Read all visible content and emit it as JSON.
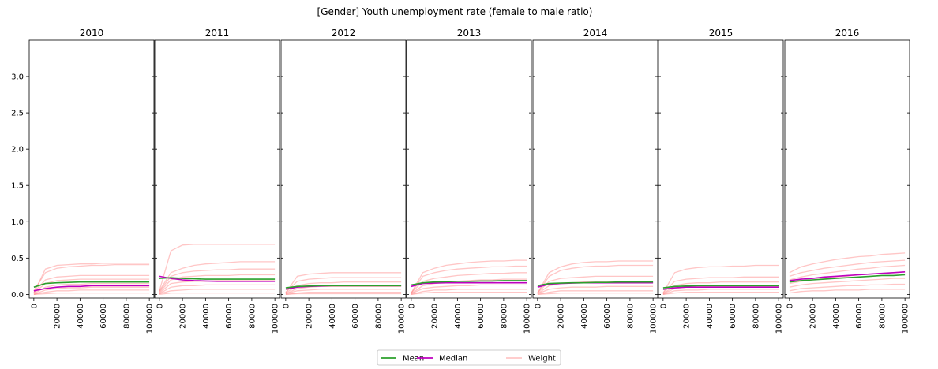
{
  "chart_data": {
    "type": "line",
    "title": "[Gender] Youth unemployment rate (female to male ratio)",
    "panels": [
      "2010",
      "2011",
      "2012",
      "2013",
      "2014",
      "2015",
      "2016"
    ],
    "x_ticks": [
      "0",
      "20000",
      "40000",
      "60000",
      "80000",
      "100000"
    ],
    "xlim": [
      -4000,
      104000
    ],
    "y_ticks": [
      "0.0",
      "0.5",
      "1.0",
      "1.5",
      "2.0",
      "2.5",
      "3.0"
    ],
    "ylim": [
      -0.05,
      3.5
    ],
    "x": [
      0,
      10000,
      20000,
      30000,
      40000,
      50000,
      60000,
      70000,
      80000,
      90000,
      100000
    ],
    "legend": {
      "entries": [
        "Mean",
        "Median",
        "Weight"
      ],
      "placement": "bottom-center"
    },
    "series": [
      {
        "name": "Mean",
        "color": "#2ca02c",
        "values": [
          [
            0.1,
            0.15,
            0.16,
            0.165,
            0.17,
            0.17,
            0.17,
            0.17,
            0.17,
            0.17,
            0.17
          ],
          [
            0.22,
            0.23,
            0.22,
            0.215,
            0.21,
            0.21,
            0.21,
            0.21,
            0.21,
            0.21,
            0.21
          ],
          [
            0.09,
            0.11,
            0.115,
            0.12,
            0.12,
            0.12,
            0.12,
            0.12,
            0.12,
            0.12,
            0.12
          ],
          [
            0.13,
            0.16,
            0.17,
            0.175,
            0.18,
            0.18,
            0.185,
            0.185,
            0.19,
            0.19,
            0.19
          ],
          [
            0.12,
            0.15,
            0.155,
            0.16,
            0.16,
            0.165,
            0.165,
            0.17,
            0.17,
            0.17,
            0.17
          ],
          [
            0.09,
            0.11,
            0.115,
            0.12,
            0.12,
            0.12,
            0.12,
            0.12,
            0.12,
            0.12,
            0.12
          ],
          [
            0.17,
            0.19,
            0.2,
            0.21,
            0.22,
            0.23,
            0.24,
            0.25,
            0.26,
            0.26,
            0.27
          ]
        ]
      },
      {
        "name": "Median",
        "color": "#bf00bf",
        "values": [
          [
            0.05,
            0.08,
            0.1,
            0.11,
            0.11,
            0.12,
            0.12,
            0.12,
            0.12,
            0.12,
            0.12
          ],
          [
            0.25,
            0.22,
            0.2,
            0.19,
            0.185,
            0.18,
            0.18,
            0.18,
            0.18,
            0.18,
            0.18
          ],
          [
            0.07,
            0.1,
            0.11,
            0.115,
            0.12,
            0.12,
            0.12,
            0.12,
            0.12,
            0.12,
            0.12
          ],
          [
            0.11,
            0.15,
            0.155,
            0.16,
            0.16,
            0.16,
            0.16,
            0.16,
            0.16,
            0.16,
            0.16
          ],
          [
            0.1,
            0.14,
            0.15,
            0.155,
            0.16,
            0.16,
            0.16,
            0.16,
            0.16,
            0.16,
            0.16
          ],
          [
            0.07,
            0.09,
            0.1,
            0.1,
            0.1,
            0.1,
            0.1,
            0.1,
            0.1,
            0.1,
            0.1
          ],
          [
            0.19,
            0.21,
            0.22,
            0.24,
            0.25,
            0.26,
            0.27,
            0.28,
            0.29,
            0.3,
            0.31
          ]
        ]
      },
      {
        "name": "Weight",
        "color": "#ff8080",
        "values": [
          [
            [
              0.02,
              0.35,
              0.4,
              0.41,
              0.42,
              0.42,
              0.43,
              0.43,
              0.43,
              0.43,
              0.43
            ],
            [
              0.05,
              0.3,
              0.36,
              0.38,
              0.39,
              0.4,
              0.4,
              0.41,
              0.41,
              0.41,
              0.41
            ],
            [
              0.03,
              0.2,
              0.24,
              0.25,
              0.26,
              0.26,
              0.26,
              0.26,
              0.26,
              0.26,
              0.26
            ],
            [
              0.02,
              0.15,
              0.19,
              0.2,
              0.21,
              0.21,
              0.21,
              0.21,
              0.21,
              0.21,
              0.21
            ],
            [
              0.01,
              0.1,
              0.13,
              0.14,
              0.14,
              0.15,
              0.15,
              0.15,
              0.15,
              0.15,
              0.15
            ],
            [
              0.0,
              0.06,
              0.08,
              0.09,
              0.09,
              0.1,
              0.1,
              0.1,
              0.1,
              0.1,
              0.1
            ],
            [
              0.0,
              0.03,
              0.05,
              0.05,
              0.06,
              0.06,
              0.06,
              0.06,
              0.06,
              0.06,
              0.06
            ],
            [
              0.0,
              0.01,
              0.02,
              0.02,
              0.02,
              0.02,
              0.02,
              0.02,
              0.02,
              0.02,
              0.02
            ]
          ],
          [
            [
              0.05,
              0.6,
              0.68,
              0.69,
              0.69,
              0.69,
              0.69,
              0.69,
              0.69,
              0.69,
              0.69
            ],
            [
              0.05,
              0.3,
              0.36,
              0.4,
              0.42,
              0.43,
              0.44,
              0.45,
              0.45,
              0.45,
              0.45
            ],
            [
              0.04,
              0.25,
              0.3,
              0.32,
              0.33,
              0.34,
              0.34,
              0.35,
              0.35,
              0.35,
              0.35
            ],
            [
              0.03,
              0.2,
              0.24,
              0.25,
              0.26,
              0.26,
              0.26,
              0.27,
              0.27,
              0.27,
              0.27
            ],
            [
              0.02,
              0.15,
              0.17,
              0.18,
              0.18,
              0.19,
              0.19,
              0.19,
              0.19,
              0.19,
              0.19
            ],
            [
              0.01,
              0.1,
              0.12,
              0.12,
              0.13,
              0.13,
              0.13,
              0.13,
              0.13,
              0.13,
              0.13
            ],
            [
              0.01,
              0.05,
              0.06,
              0.07,
              0.07,
              0.07,
              0.07,
              0.07,
              0.07,
              0.07,
              0.07
            ],
            [
              0.0,
              0.02,
              0.02,
              0.02,
              0.02,
              0.02,
              0.02,
              0.02,
              0.02,
              0.02,
              0.02
            ]
          ],
          [
            [
              0.02,
              0.25,
              0.28,
              0.29,
              0.3,
              0.3,
              0.3,
              0.3,
              0.3,
              0.3,
              0.3
            ],
            [
              0.03,
              0.18,
              0.21,
              0.22,
              0.23,
              0.23,
              0.23,
              0.23,
              0.23,
              0.23,
              0.23
            ],
            [
              0.02,
              0.12,
              0.15,
              0.16,
              0.16,
              0.17,
              0.17,
              0.17,
              0.17,
              0.17,
              0.17
            ],
            [
              0.01,
              0.08,
              0.1,
              0.11,
              0.11,
              0.11,
              0.11,
              0.11,
              0.11,
              0.11,
              0.11
            ],
            [
              0.01,
              0.05,
              0.06,
              0.07,
              0.07,
              0.07,
              0.07,
              0.07,
              0.07,
              0.07,
              0.07
            ],
            [
              0.0,
              0.02,
              0.03,
              0.03,
              0.03,
              0.03,
              0.03,
              0.03,
              0.03,
              0.03,
              0.03
            ],
            [
              0.0,
              0.01,
              0.01,
              0.01,
              0.01,
              0.01,
              0.01,
              0.01,
              0.01,
              0.01,
              0.01
            ]
          ],
          [
            [
              0.02,
              0.3,
              0.36,
              0.4,
              0.42,
              0.44,
              0.45,
              0.46,
              0.46,
              0.47,
              0.47
            ],
            [
              0.02,
              0.25,
              0.3,
              0.33,
              0.35,
              0.36,
              0.37,
              0.38,
              0.38,
              0.39,
              0.39
            ],
            [
              0.02,
              0.18,
              0.22,
              0.24,
              0.26,
              0.27,
              0.28,
              0.29,
              0.29,
              0.3,
              0.3
            ],
            [
              0.01,
              0.12,
              0.15,
              0.17,
              0.18,
              0.19,
              0.2,
              0.2,
              0.21,
              0.21,
              0.21
            ],
            [
              0.01,
              0.08,
              0.1,
              0.11,
              0.12,
              0.12,
              0.13,
              0.13,
              0.13,
              0.13,
              0.13
            ],
            [
              0.0,
              0.04,
              0.06,
              0.06,
              0.07,
              0.07,
              0.07,
              0.07,
              0.07,
              0.07,
              0.07
            ],
            [
              0.0,
              0.02,
              0.03,
              0.03,
              0.03,
              0.03,
              0.03,
              0.03,
              0.03,
              0.03,
              0.03
            ]
          ],
          [
            [
              0.02,
              0.3,
              0.38,
              0.42,
              0.44,
              0.45,
              0.45,
              0.46,
              0.46,
              0.46,
              0.46
            ],
            [
              0.02,
              0.25,
              0.33,
              0.36,
              0.38,
              0.39,
              0.39,
              0.4,
              0.4,
              0.4,
              0.4
            ],
            [
              0.02,
              0.18,
              0.22,
              0.23,
              0.24,
              0.25,
              0.25,
              0.25,
              0.25,
              0.25,
              0.25
            ],
            [
              0.01,
              0.12,
              0.15,
              0.16,
              0.17,
              0.17,
              0.17,
              0.18,
              0.18,
              0.18,
              0.18
            ],
            [
              0.01,
              0.07,
              0.09,
              0.1,
              0.1,
              0.1,
              0.11,
              0.11,
              0.11,
              0.11,
              0.11
            ],
            [
              0.0,
              0.03,
              0.05,
              0.05,
              0.05,
              0.05,
              0.05,
              0.05,
              0.05,
              0.05,
              0.05
            ],
            [
              0.0,
              0.01,
              0.02,
              0.02,
              0.02,
              0.02,
              0.02,
              0.02,
              0.02,
              0.02,
              0.02
            ]
          ],
          [
            [
              0.02,
              0.3,
              0.35,
              0.37,
              0.38,
              0.38,
              0.39,
              0.39,
              0.4,
              0.4,
              0.4
            ],
            [
              0.02,
              0.18,
              0.21,
              0.22,
              0.23,
              0.23,
              0.23,
              0.24,
              0.24,
              0.24,
              0.24
            ],
            [
              0.01,
              0.12,
              0.15,
              0.16,
              0.16,
              0.17,
              0.17,
              0.17,
              0.17,
              0.17,
              0.17
            ],
            [
              0.01,
              0.08,
              0.1,
              0.11,
              0.11,
              0.11,
              0.11,
              0.11,
              0.11,
              0.11,
              0.11
            ],
            [
              0.0,
              0.05,
              0.06,
              0.06,
              0.07,
              0.07,
              0.07,
              0.07,
              0.07,
              0.07,
              0.07
            ],
            [
              0.0,
              0.02,
              0.03,
              0.03,
              0.03,
              0.03,
              0.03,
              0.03,
              0.03,
              0.03,
              0.03
            ]
          ],
          [
            [
              0.3,
              0.38,
              0.42,
              0.45,
              0.48,
              0.5,
              0.52,
              0.53,
              0.55,
              0.56,
              0.57
            ],
            [
              0.25,
              0.3,
              0.33,
              0.36,
              0.38,
              0.4,
              0.42,
              0.44,
              0.45,
              0.46,
              0.47
            ],
            [
              0.2,
              0.24,
              0.27,
              0.29,
              0.31,
              0.33,
              0.35,
              0.36,
              0.38,
              0.39,
              0.4
            ],
            [
              0.15,
              0.18,
              0.2,
              0.22,
              0.24,
              0.25,
              0.27,
              0.28,
              0.29,
              0.3,
              0.31
            ],
            [
              0.1,
              0.13,
              0.15,
              0.16,
              0.17,
              0.18,
              0.19,
              0.2,
              0.21,
              0.22,
              0.22
            ],
            [
              0.05,
              0.08,
              0.09,
              0.1,
              0.11,
              0.12,
              0.12,
              0.13,
              0.13,
              0.14,
              0.14
            ],
            [
              0.02,
              0.04,
              0.05,
              0.05,
              0.06,
              0.06,
              0.06,
              0.07,
              0.07,
              0.07,
              0.07
            ]
          ]
        ]
      }
    ]
  }
}
